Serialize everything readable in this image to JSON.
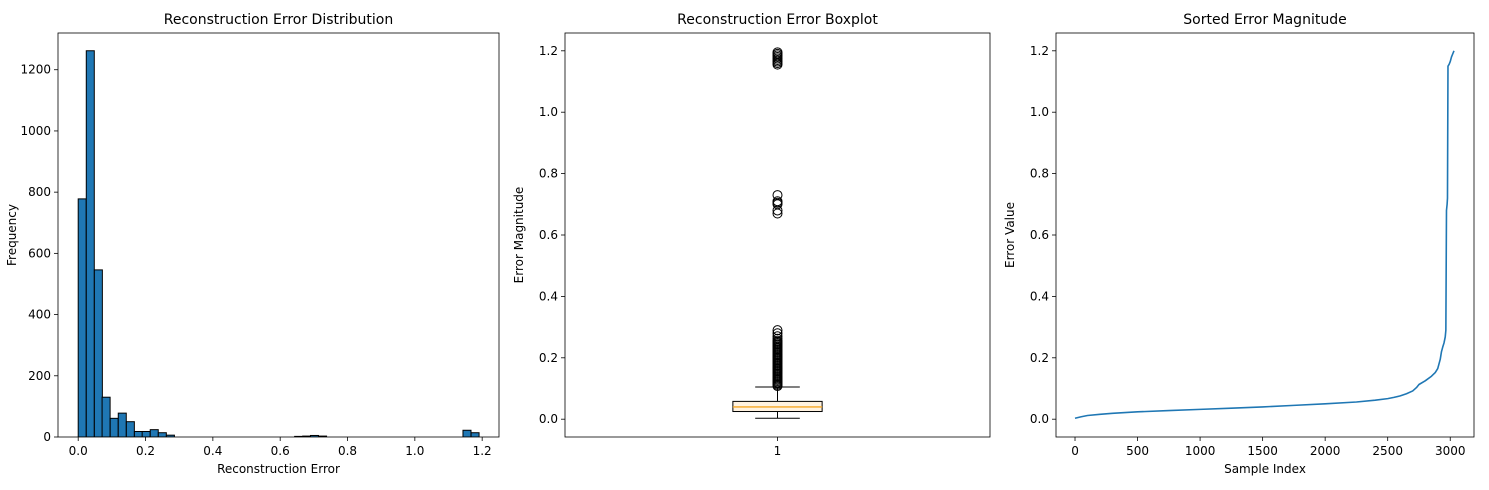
{
  "colors": {
    "bar_fill": "#1f77b4",
    "bar_edge": "#000000",
    "line": "#1f77b4",
    "box_fill": "#fff2e0",
    "median": "#f5a623",
    "axes": "#000000"
  },
  "chart_data": [
    {
      "type": "bar",
      "title": "Reconstruction Error Distribution",
      "xlabel": "Reconstruction Error",
      "ylabel": "Frequency",
      "xlim": [
        -0.06,
        1.25
      ],
      "ylim": [
        0,
        1320
      ],
      "xticks": [
        0.0,
        0.2,
        0.4,
        0.6,
        0.8,
        1.0,
        1.2
      ],
      "xtick_labels": [
        "0.0",
        "0.2",
        "0.4",
        "0.6",
        "0.8",
        "1.0",
        "1.2"
      ],
      "yticks": [
        0,
        200,
        400,
        600,
        800,
        1000,
        1200
      ],
      "ytick_labels": [
        "0",
        "200",
        "400",
        "600",
        "800",
        "1000",
        "1200"
      ],
      "bin_width": 0.0238,
      "bins": [
        {
          "x0": 0.0,
          "count": 778
        },
        {
          "x0": 0.024,
          "count": 1262
        },
        {
          "x0": 0.048,
          "count": 546
        },
        {
          "x0": 0.071,
          "count": 130
        },
        {
          "x0": 0.095,
          "count": 61
        },
        {
          "x0": 0.119,
          "count": 78
        },
        {
          "x0": 0.143,
          "count": 50
        },
        {
          "x0": 0.167,
          "count": 18
        },
        {
          "x0": 0.19,
          "count": 18
        },
        {
          "x0": 0.214,
          "count": 24
        },
        {
          "x0": 0.238,
          "count": 14
        },
        {
          "x0": 0.262,
          "count": 6
        },
        {
          "x0": 0.643,
          "count": 2
        },
        {
          "x0": 0.667,
          "count": 3
        },
        {
          "x0": 0.69,
          "count": 5
        },
        {
          "x0": 0.714,
          "count": 3
        },
        {
          "x0": 1.143,
          "count": 22
        },
        {
          "x0": 1.167,
          "count": 14
        }
      ]
    },
    {
      "type": "box",
      "title": "Reconstruction Error Boxplot",
      "xlabel": "",
      "ylabel": "Error Magnitude",
      "xlim": [
        0.5,
        1.5
      ],
      "ylim": [
        -0.058,
        1.258
      ],
      "xticks": [
        1
      ],
      "xtick_labels": [
        "1"
      ],
      "yticks": [
        0.0,
        0.2,
        0.4,
        0.6,
        0.8,
        1.0,
        1.2
      ],
      "ytick_labels": [
        "0.0",
        "0.2",
        "0.4",
        "0.6",
        "0.8",
        "1.0",
        "1.2"
      ],
      "box": {
        "position": 1,
        "q1": 0.025,
        "median": 0.04,
        "q3": 0.058,
        "whisker_low": 0.003,
        "whisker_high": 0.105
      },
      "fliers": [
        0.108,
        0.112,
        0.116,
        0.12,
        0.124,
        0.128,
        0.132,
        0.136,
        0.14,
        0.144,
        0.148,
        0.152,
        0.156,
        0.16,
        0.164,
        0.168,
        0.172,
        0.176,
        0.18,
        0.184,
        0.188,
        0.192,
        0.196,
        0.2,
        0.204,
        0.208,
        0.212,
        0.216,
        0.22,
        0.224,
        0.228,
        0.232,
        0.236,
        0.24,
        0.244,
        0.248,
        0.252,
        0.256,
        0.262,
        0.27,
        0.28,
        0.29,
        0.67,
        0.68,
        0.7,
        0.705,
        0.71,
        0.73,
        1.155,
        1.16,
        1.165,
        1.17,
        1.175,
        1.18,
        1.185,
        1.19,
        1.195
      ]
    },
    {
      "type": "line",
      "title": "Sorted Error Magnitude",
      "xlabel": "Sample Index",
      "ylabel": "Error Value",
      "xlim": [
        -152,
        3190
      ],
      "ylim": [
        -0.058,
        1.258
      ],
      "xticks": [
        0,
        500,
        1000,
        1500,
        2000,
        2500,
        3000
      ],
      "xtick_labels": [
        "0",
        "500",
        "1000",
        "1500",
        "2000",
        "2500",
        "3000"
      ],
      "yticks": [
        0.0,
        0.2,
        0.4,
        0.6,
        0.8,
        1.0,
        1.2
      ],
      "ytick_labels": [
        "0.0",
        "0.2",
        "0.4",
        "0.6",
        "0.8",
        "1.0",
        "1.2"
      ],
      "x": [
        0,
        50,
        100,
        200,
        300,
        500,
        750,
        1000,
        1250,
        1500,
        1750,
        2000,
        2250,
        2400,
        2500,
        2550,
        2600,
        2650,
        2700,
        2730,
        2750,
        2800,
        2850,
        2880,
        2900,
        2920,
        2930,
        2940,
        2950,
        2960,
        2965,
        2970,
        2975,
        2978,
        2982,
        2990,
        3000,
        3010,
        3020,
        3030
      ],
      "y": [
        0.003,
        0.008,
        0.012,
        0.016,
        0.019,
        0.024,
        0.028,
        0.032,
        0.036,
        0.04,
        0.045,
        0.05,
        0.056,
        0.062,
        0.067,
        0.071,
        0.076,
        0.083,
        0.092,
        0.103,
        0.113,
        0.125,
        0.14,
        0.152,
        0.165,
        0.195,
        0.22,
        0.235,
        0.248,
        0.268,
        0.29,
        0.68,
        0.7,
        0.72,
        1.15,
        1.155,
        1.165,
        1.18,
        1.19,
        1.2
      ]
    }
  ]
}
